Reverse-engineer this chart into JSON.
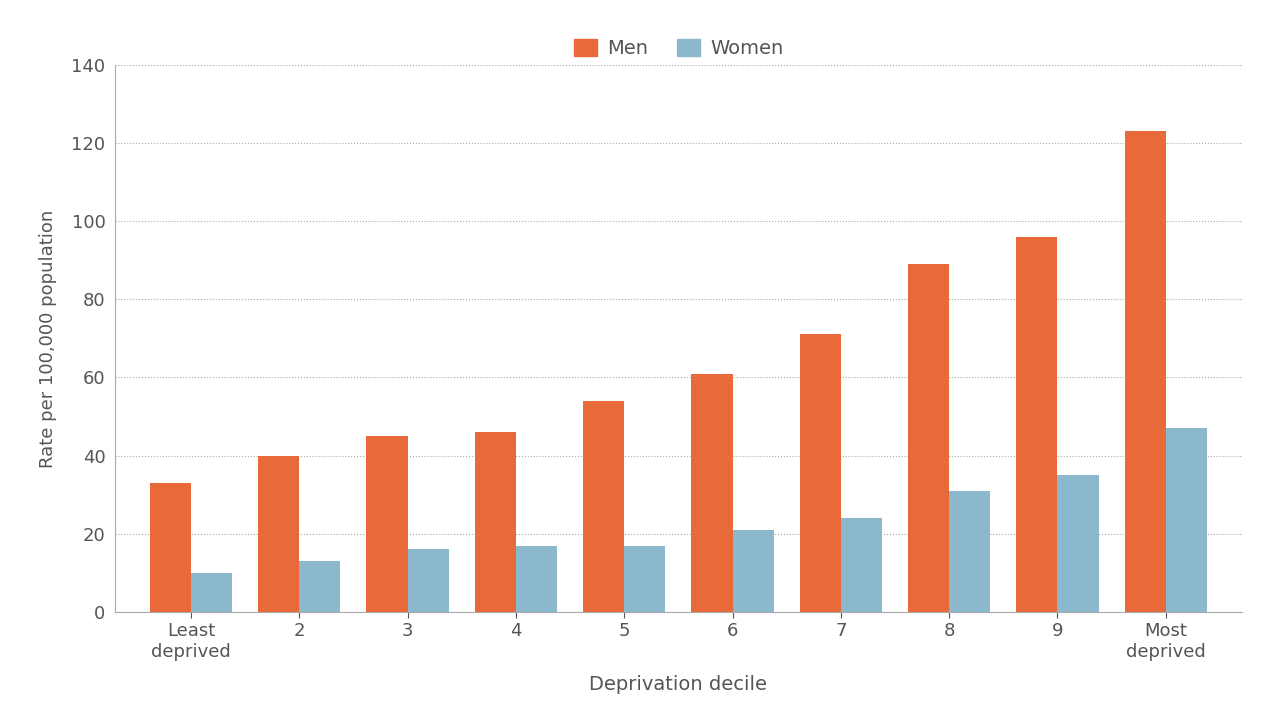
{
  "categories": [
    "Least\ndeprived",
    "2",
    "3",
    "4",
    "5",
    "6",
    "7",
    "8",
    "9",
    "Most\ndeprived"
  ],
  "men_values": [
    33,
    40,
    45,
    46,
    54,
    61,
    71,
    89,
    96,
    123
  ],
  "women_values": [
    10,
    13,
    16,
    17,
    17,
    21,
    24,
    31,
    35,
    47
  ],
  "men_color": "#E8693A",
  "women_color": "#8BB8CC",
  "xlabel": "Deprivation decile",
  "ylabel": "Rate per 100,000 population",
  "ylim": [
    0,
    140
  ],
  "yticks": [
    0,
    20,
    40,
    60,
    80,
    100,
    120,
    140
  ],
  "legend_labels": [
    "Men",
    "Women"
  ],
  "background_color": "#ffffff",
  "grid_color": "#aaaaaa",
  "bar_width": 0.38
}
